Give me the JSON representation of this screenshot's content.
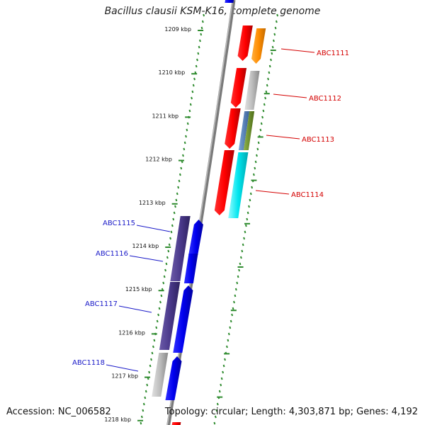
{
  "title": "Bacillus clausii KSM-K16, complete genome",
  "footer": {
    "accession": "Accession: NC_006582",
    "summary": "Topology: circular; Length: 4,303,871 bp; Genes: 4,192"
  },
  "ticks": [
    {
      "label": "1209 kbp"
    },
    {
      "label": "1210 kbp"
    },
    {
      "label": "1211 kbp"
    },
    {
      "label": "1212 kbp"
    },
    {
      "label": "1213 kbp"
    },
    {
      "label": "1214 kbp"
    },
    {
      "label": "1215 kbp"
    },
    {
      "label": "1216 kbp"
    },
    {
      "label": "1217 kbp"
    },
    {
      "label": "1218 kbp"
    }
  ],
  "genes_outer": [
    {
      "label": "ABC1111",
      "color": "#d40000"
    },
    {
      "label": "ABC1112",
      "color": "#d40000"
    },
    {
      "label": "ABC1113",
      "color": "#d40000"
    },
    {
      "label": "ABC1114",
      "color": "#d40000"
    }
  ],
  "genes_inner": [
    {
      "label": "ABC1115",
      "color": "#1a1ac8"
    },
    {
      "label": "ABC1116",
      "color": "#1a1ac8"
    },
    {
      "label": "ABC1117",
      "color": "#1a1ac8"
    },
    {
      "label": "ABC1118",
      "color": "#1a1ac8"
    }
  ],
  "colors": {
    "backbone": "#7a7a7a",
    "tick_green": "#2e8b2e",
    "gene_red": "#ff0000",
    "gene_blue": "#0000ee",
    "orange": "#ff8c00",
    "gray": "#b4b4b4",
    "steelblue": "#4f7fb8",
    "olive": "#6b8e23",
    "cyan": "#00e5ee",
    "purple": "#4b3a8c",
    "label_red": "#d40000",
    "label_blue": "#1a1ac8"
  }
}
